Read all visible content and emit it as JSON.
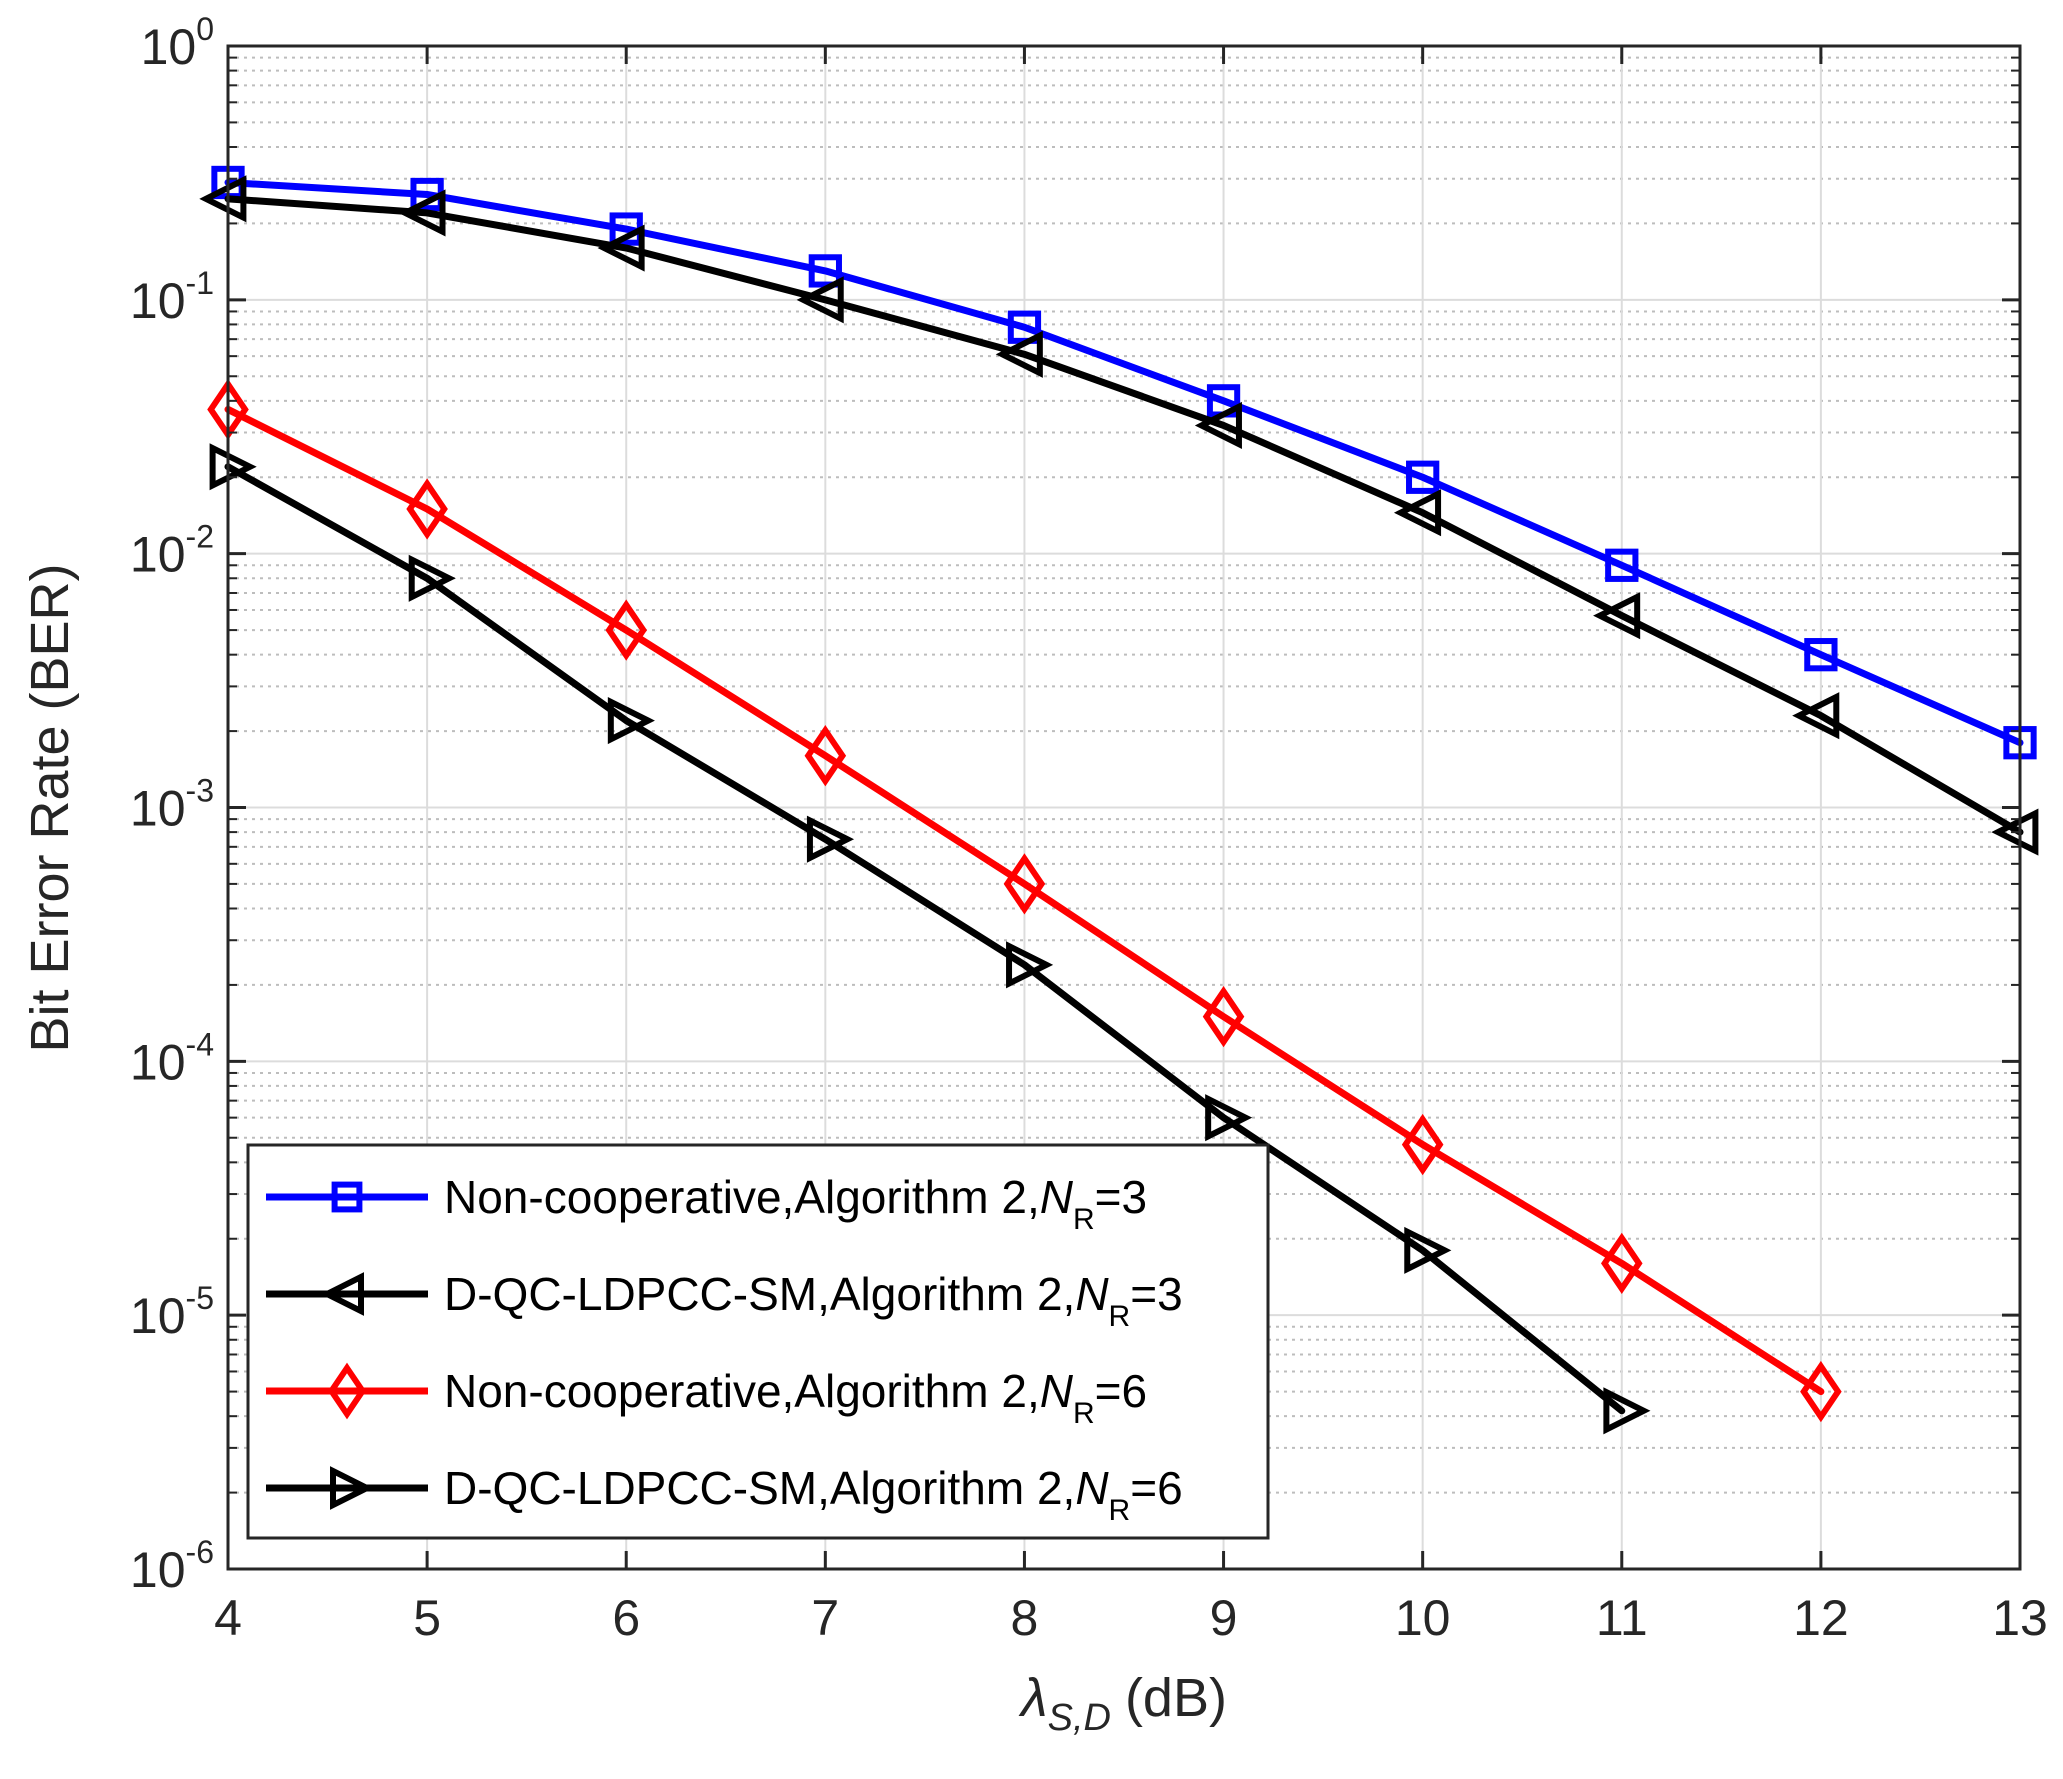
{
  "chart_data": {
    "type": "line",
    "y_scale": "log",
    "xlabel": {
      "symbol": "λ",
      "subscript": "S,D",
      "unit": "(dB)"
    },
    "ylabel": "Bit Error Rate (BER)",
    "xlim": [
      4,
      13
    ],
    "ylim": [
      1e-06,
      1
    ],
    "x_ticks": [
      4,
      5,
      6,
      7,
      8,
      9,
      10,
      11,
      12,
      13
    ],
    "x_tick_labels": [
      "4",
      "5",
      "6",
      "7",
      "8",
      "9",
      "10",
      "11",
      "12",
      "13"
    ],
    "y_ticks": [
      {
        "value": 1,
        "base": "10",
        "exp": "0"
      },
      {
        "value": 0.1,
        "base": "10",
        "exp": "-1"
      },
      {
        "value": 0.01,
        "base": "10",
        "exp": "-2"
      },
      {
        "value": 0.001,
        "base": "10",
        "exp": "-3"
      },
      {
        "value": 0.0001,
        "base": "10",
        "exp": "-4"
      },
      {
        "value": 1e-05,
        "base": "10",
        "exp": "-5"
      },
      {
        "value": 1e-06,
        "base": "10",
        "exp": "-6"
      }
    ],
    "grid": true,
    "minor_grid": true,
    "legend_position": "bottom-left",
    "series": [
      {
        "name": "Non-cooperative,Algorithm 2,",
        "name_var": "N",
        "name_sub": "R",
        "name_val": "=3",
        "color": "#0000ff",
        "marker": "square",
        "x": [
          4,
          5,
          6,
          7,
          8,
          9,
          10,
          11,
          12,
          13
        ],
        "y": [
          0.29,
          0.26,
          0.19,
          0.13,
          0.078,
          0.04,
          0.02,
          0.009,
          0.004,
          0.0018
        ]
      },
      {
        "name": "D-QC-LDPCC-SM,Algorithm 2,",
        "name_var": "N",
        "name_sub": "R",
        "name_val": "=3",
        "color": "#000000",
        "marker": "triangle-left",
        "x": [
          4,
          5,
          6,
          7,
          8,
          9,
          10,
          11,
          12,
          13
        ],
        "y": [
          0.25,
          0.22,
          0.16,
          0.1,
          0.061,
          0.032,
          0.0145,
          0.0057,
          0.0023,
          0.0008
        ]
      },
      {
        "name": "Non-cooperative,Algorithm 2,",
        "name_var": "N",
        "name_sub": "R",
        "name_val": "=6",
        "color": "#ff0000",
        "marker": "diamond",
        "x": [
          4,
          5,
          6,
          7,
          8,
          9,
          10,
          11,
          12
        ],
        "y": [
          0.037,
          0.015,
          0.005,
          0.0016,
          0.0005,
          0.00015,
          4.7e-05,
          1.6e-05,
          5e-06
        ]
      },
      {
        "name": "D-QC-LDPCC-SM,Algorithm 2,",
        "name_var": "N",
        "name_sub": "R",
        "name_val": "=6",
        "color": "#000000",
        "marker": "triangle-right",
        "x": [
          4,
          5,
          6,
          7,
          8,
          9,
          10,
          11
        ],
        "y": [
          0.022,
          0.008,
          0.0022,
          0.00075,
          0.00024,
          6e-05,
          1.8e-05,
          4.2e-06
        ]
      }
    ]
  }
}
